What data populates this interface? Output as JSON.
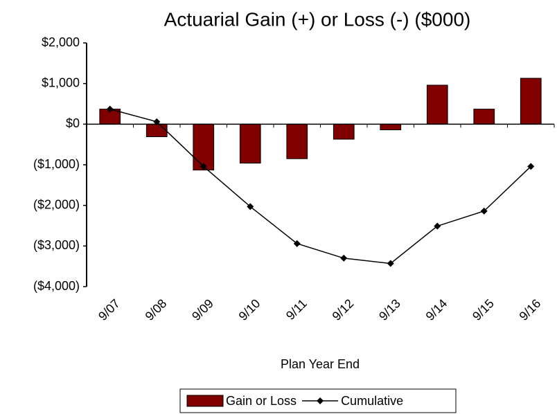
{
  "chart_data": {
    "type": "bar_line",
    "title": "Actuarial Gain (+) or Loss (-) ($000)",
    "x_label": "Plan Year End",
    "categories": [
      "9/07",
      "9/08",
      "9/09",
      "9/10",
      "9/11",
      "9/12",
      "9/13",
      "9/14",
      "9/15",
      "9/16"
    ],
    "series": [
      {
        "name": "Gain or Loss",
        "type": "bar",
        "color": "#800000",
        "values": [
          370,
          -310,
          -1130,
          -960,
          -850,
          -370,
          -140,
          960,
          370,
          1130
        ]
      },
      {
        "name": "Cumulative",
        "type": "line",
        "color": "#000000",
        "values": [
          370,
          60,
          -1040,
          -2030,
          -2940,
          -3300,
          -3430,
          -2510,
          -2140,
          -1040
        ]
      }
    ],
    "ylim": [
      -4000,
      2000
    ],
    "yticks": [
      {
        "value": -4000,
        "label": "($4,000)"
      },
      {
        "value": -3000,
        "label": "($3,000)"
      },
      {
        "value": -2000,
        "label": "($2,000)"
      },
      {
        "value": -1000,
        "label": "($1,000)"
      },
      {
        "value": 0,
        "label": "$0"
      },
      {
        "value": 1000,
        "label": "$1,000"
      },
      {
        "value": 2000,
        "label": "$2,000"
      }
    ],
    "grid": false,
    "legend": "bottom"
  }
}
